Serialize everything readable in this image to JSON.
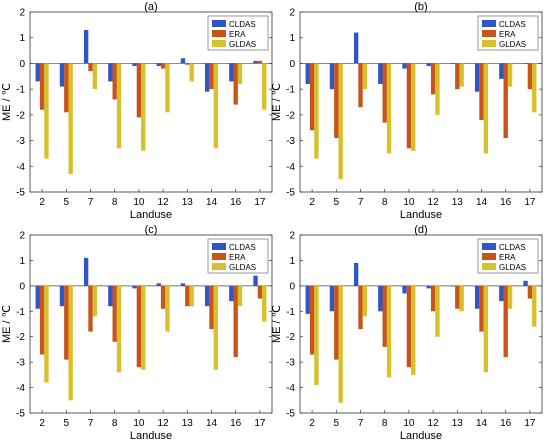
{
  "colors": {
    "CLDAS": "#2f55c6",
    "ERA": "#c8541a",
    "GLDAS": "#d8c02a"
  },
  "chart_data": [
    {
      "type": "bar",
      "title": "(a)",
      "xlabel": "Landuse",
      "ylabel": "ME / ℃",
      "ylim": [
        -5,
        2
      ],
      "yticks": [
        "-5",
        "-4",
        "-3",
        "-2",
        "-1",
        "0",
        "1",
        "2"
      ],
      "categories": [
        "2",
        "5",
        "7",
        "8",
        "10",
        "12",
        "13",
        "14",
        "16",
        "17"
      ],
      "series": [
        {
          "name": "CLDAS",
          "values": [
            -0.7,
            -0.9,
            1.3,
            -0.7,
            -0.1,
            -0.1,
            0.2,
            -1.1,
            -0.7,
            0.1
          ]
        },
        {
          "name": "ERA",
          "values": [
            -1.8,
            -1.9,
            -0.3,
            -1.4,
            -2.1,
            -0.2,
            -0.05,
            -1.0,
            -1.6,
            0.1
          ]
        },
        {
          "name": "GLDAS",
          "values": [
            -3.7,
            -4.3,
            -1.0,
            -3.3,
            -3.4,
            -1.9,
            -0.7,
            -3.3,
            -0.8,
            -1.8
          ]
        }
      ],
      "legend": "top-right",
      "grid": false
    },
    {
      "type": "bar",
      "title": "(b)",
      "xlabel": "Landuse",
      "ylabel": "ME / ℃",
      "ylim": [
        -5,
        2
      ],
      "yticks": [
        "-5",
        "-4",
        "-3",
        "-2",
        "-1",
        "0",
        "1",
        "2"
      ],
      "categories": [
        "2",
        "5",
        "7",
        "8",
        "10",
        "12",
        "13",
        "14",
        "16",
        "17"
      ],
      "series": [
        {
          "name": "CLDAS",
          "values": [
            -0.8,
            -1.0,
            1.2,
            -0.8,
            -0.2,
            -0.1,
            0.0,
            -1.1,
            -0.6,
            0.0
          ]
        },
        {
          "name": "ERA",
          "values": [
            -2.6,
            -2.9,
            -1.7,
            -2.3,
            -3.3,
            -1.2,
            -1.0,
            -2.2,
            -2.9,
            -1.0
          ]
        },
        {
          "name": "GLDAS",
          "values": [
            -3.7,
            -4.5,
            -1.0,
            -3.5,
            -3.4,
            -2.0,
            -0.9,
            -3.5,
            -0.9,
            -1.9
          ]
        }
      ],
      "legend": "top-right",
      "grid": false
    },
    {
      "type": "bar",
      "title": "(c)",
      "xlabel": "Landuse",
      "ylabel": "ME / ℃",
      "ylim": [
        -5,
        2
      ],
      "yticks": [
        "-5",
        "-4",
        "-3",
        "-2",
        "-1",
        "0",
        "1",
        "2"
      ],
      "categories": [
        "2",
        "5",
        "7",
        "8",
        "10",
        "12",
        "13",
        "14",
        "16",
        "17"
      ],
      "series": [
        {
          "name": "CLDAS",
          "values": [
            -0.9,
            -0.8,
            1.1,
            -0.8,
            -0.1,
            0.1,
            0.1,
            -0.8,
            -0.6,
            0.4
          ]
        },
        {
          "name": "ERA",
          "values": [
            -2.7,
            -2.9,
            -1.8,
            -2.2,
            -3.2,
            -0.9,
            -0.8,
            -1.7,
            -2.8,
            -0.5
          ]
        },
        {
          "name": "GLDAS",
          "values": [
            -3.8,
            -4.5,
            -1.2,
            -3.4,
            -3.3,
            -1.8,
            -0.8,
            -3.3,
            -0.8,
            -1.4
          ]
        }
      ],
      "legend": "top-right",
      "grid": false
    },
    {
      "type": "bar",
      "title": "(d)",
      "xlabel": "Landuse",
      "ylabel": "ME / ℃",
      "ylim": [
        -5,
        2
      ],
      "yticks": [
        "-5",
        "-4",
        "-3",
        "-2",
        "-1",
        "0",
        "1",
        "2"
      ],
      "categories": [
        "2",
        "5",
        "7",
        "8",
        "10",
        "12",
        "13",
        "14",
        "16",
        "17"
      ],
      "series": [
        {
          "name": "CLDAS",
          "values": [
            -1.1,
            -1.0,
            0.9,
            -1.0,
            -0.3,
            -0.1,
            0.0,
            -0.9,
            -0.6,
            0.2
          ]
        },
        {
          "name": "ERA",
          "values": [
            -2.7,
            -2.9,
            -1.7,
            -2.4,
            -3.2,
            -1.0,
            -0.9,
            -1.8,
            -2.8,
            -0.5
          ]
        },
        {
          "name": "GLDAS",
          "values": [
            -3.9,
            -4.6,
            -1.2,
            -3.6,
            -3.5,
            -2.0,
            -1.0,
            -3.4,
            -0.9,
            -1.6
          ]
        }
      ],
      "legend": "top-right",
      "grid": false
    }
  ]
}
